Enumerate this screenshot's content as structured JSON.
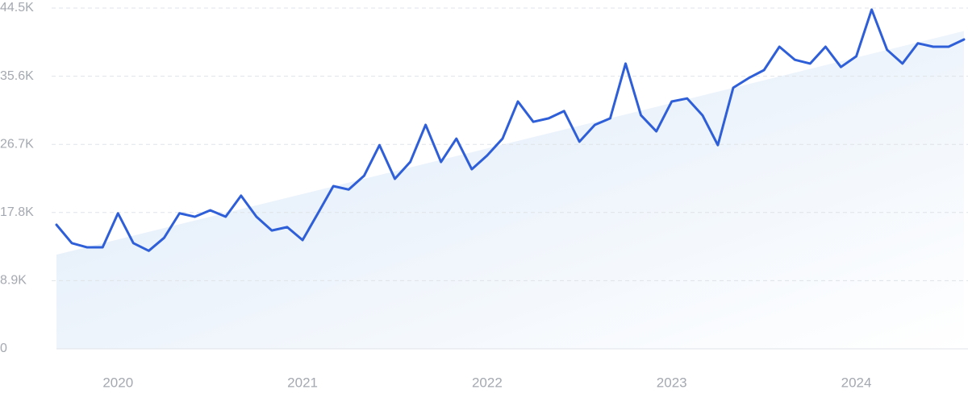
{
  "chart_data": {
    "type": "line",
    "categories": [
      null,
      null,
      null,
      null,
      "2020",
      null,
      null,
      null,
      null,
      null,
      null,
      null,
      null,
      null,
      null,
      null,
      "2021",
      null,
      null,
      null,
      null,
      null,
      null,
      null,
      null,
      null,
      null,
      null,
      "2022",
      null,
      null,
      null,
      null,
      null,
      null,
      null,
      null,
      null,
      null,
      null,
      "2023",
      null,
      null,
      null,
      null,
      null,
      null,
      null,
      null,
      null,
      null,
      null,
      "2024",
      null,
      null,
      null,
      null,
      null,
      null,
      null
    ],
    "values": [
      16200,
      13800,
      13250,
      13250,
      17700,
      13800,
      12800,
      14500,
      17700,
      17250,
      18100,
      17250,
      20000,
      17250,
      15450,
      15900,
      14200,
      17700,
      21250,
      20800,
      22600,
      26600,
      22200,
      24400,
      29250,
      24400,
      27450,
      23450,
      25250,
      27450,
      32300,
      29650,
      30100,
      31050,
      27050,
      29250,
      30100,
      37250,
      30500,
      28400,
      32300,
      32700,
      30500,
      26600,
      34100,
      35350,
      36400,
      39450,
      37750,
      37250,
      39450,
      36800,
      38200,
      44300,
      39050,
      37250,
      39900,
      39450,
      39450,
      40400
    ],
    "color": "#2f5fd8",
    "trend_values": [
      12300,
      41500
    ],
    "trend_color": "#dce9f8",
    "ylim": [
      0,
      44500
    ],
    "yticks": [
      0,
      {
        "value": 8900,
        "label": "8.9K"
      },
      {
        "value": 17800,
        "label": "17.8K"
      },
      {
        "value": 26700,
        "label": "26.7K"
      },
      {
        "value": 35600,
        "label": "35.6K"
      },
      {
        "value": 44500,
        "label": "44.5K"
      }
    ],
    "grid": true
  }
}
